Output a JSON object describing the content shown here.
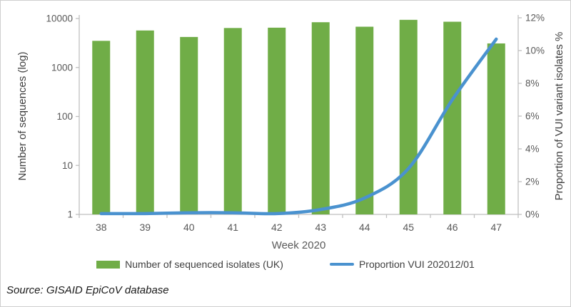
{
  "figure": {
    "source_note": "Source: GISAID EpiCoV database"
  },
  "chart_data": {
    "type": "bar+line combo",
    "title": "",
    "categories": [
      "38",
      "39",
      "40",
      "41",
      "42",
      "43",
      "44",
      "45",
      "46",
      "47"
    ],
    "series": [
      {
        "name": "Number of sequenced isolates (UK)",
        "type": "bar",
        "axis": "left",
        "color": "#70ad47",
        "values": [
          3500,
          5700,
          4200,
          6400,
          6500,
          8400,
          6800,
          9400,
          8600,
          3100
        ]
      },
      {
        "name": "Proportion VUI 202012/01",
        "type": "line",
        "axis": "right",
        "color": "#4a92cf",
        "values": [
          0.05,
          0.05,
          0.1,
          0.1,
          0.05,
          0.3,
          1.0,
          2.8,
          7.0,
          10.7
        ]
      }
    ],
    "left_axis": {
      "label": "Number of sequences (log)",
      "scale": "log",
      "range": [
        1,
        10000
      ],
      "ticks": [
        10000,
        1000,
        100,
        10,
        1
      ]
    },
    "right_axis": {
      "label": "Proportion of VUI variant isolates %",
      "scale": "linear",
      "range": [
        0,
        12
      ],
      "ticks": [
        "0%",
        "2%",
        "4%",
        "6%",
        "8%",
        "10%",
        "12%"
      ]
    },
    "x_axis": {
      "label": "Week 2020"
    },
    "legend_position": "bottom",
    "grid": false,
    "axis_line_color": "#bfbfbf"
  }
}
